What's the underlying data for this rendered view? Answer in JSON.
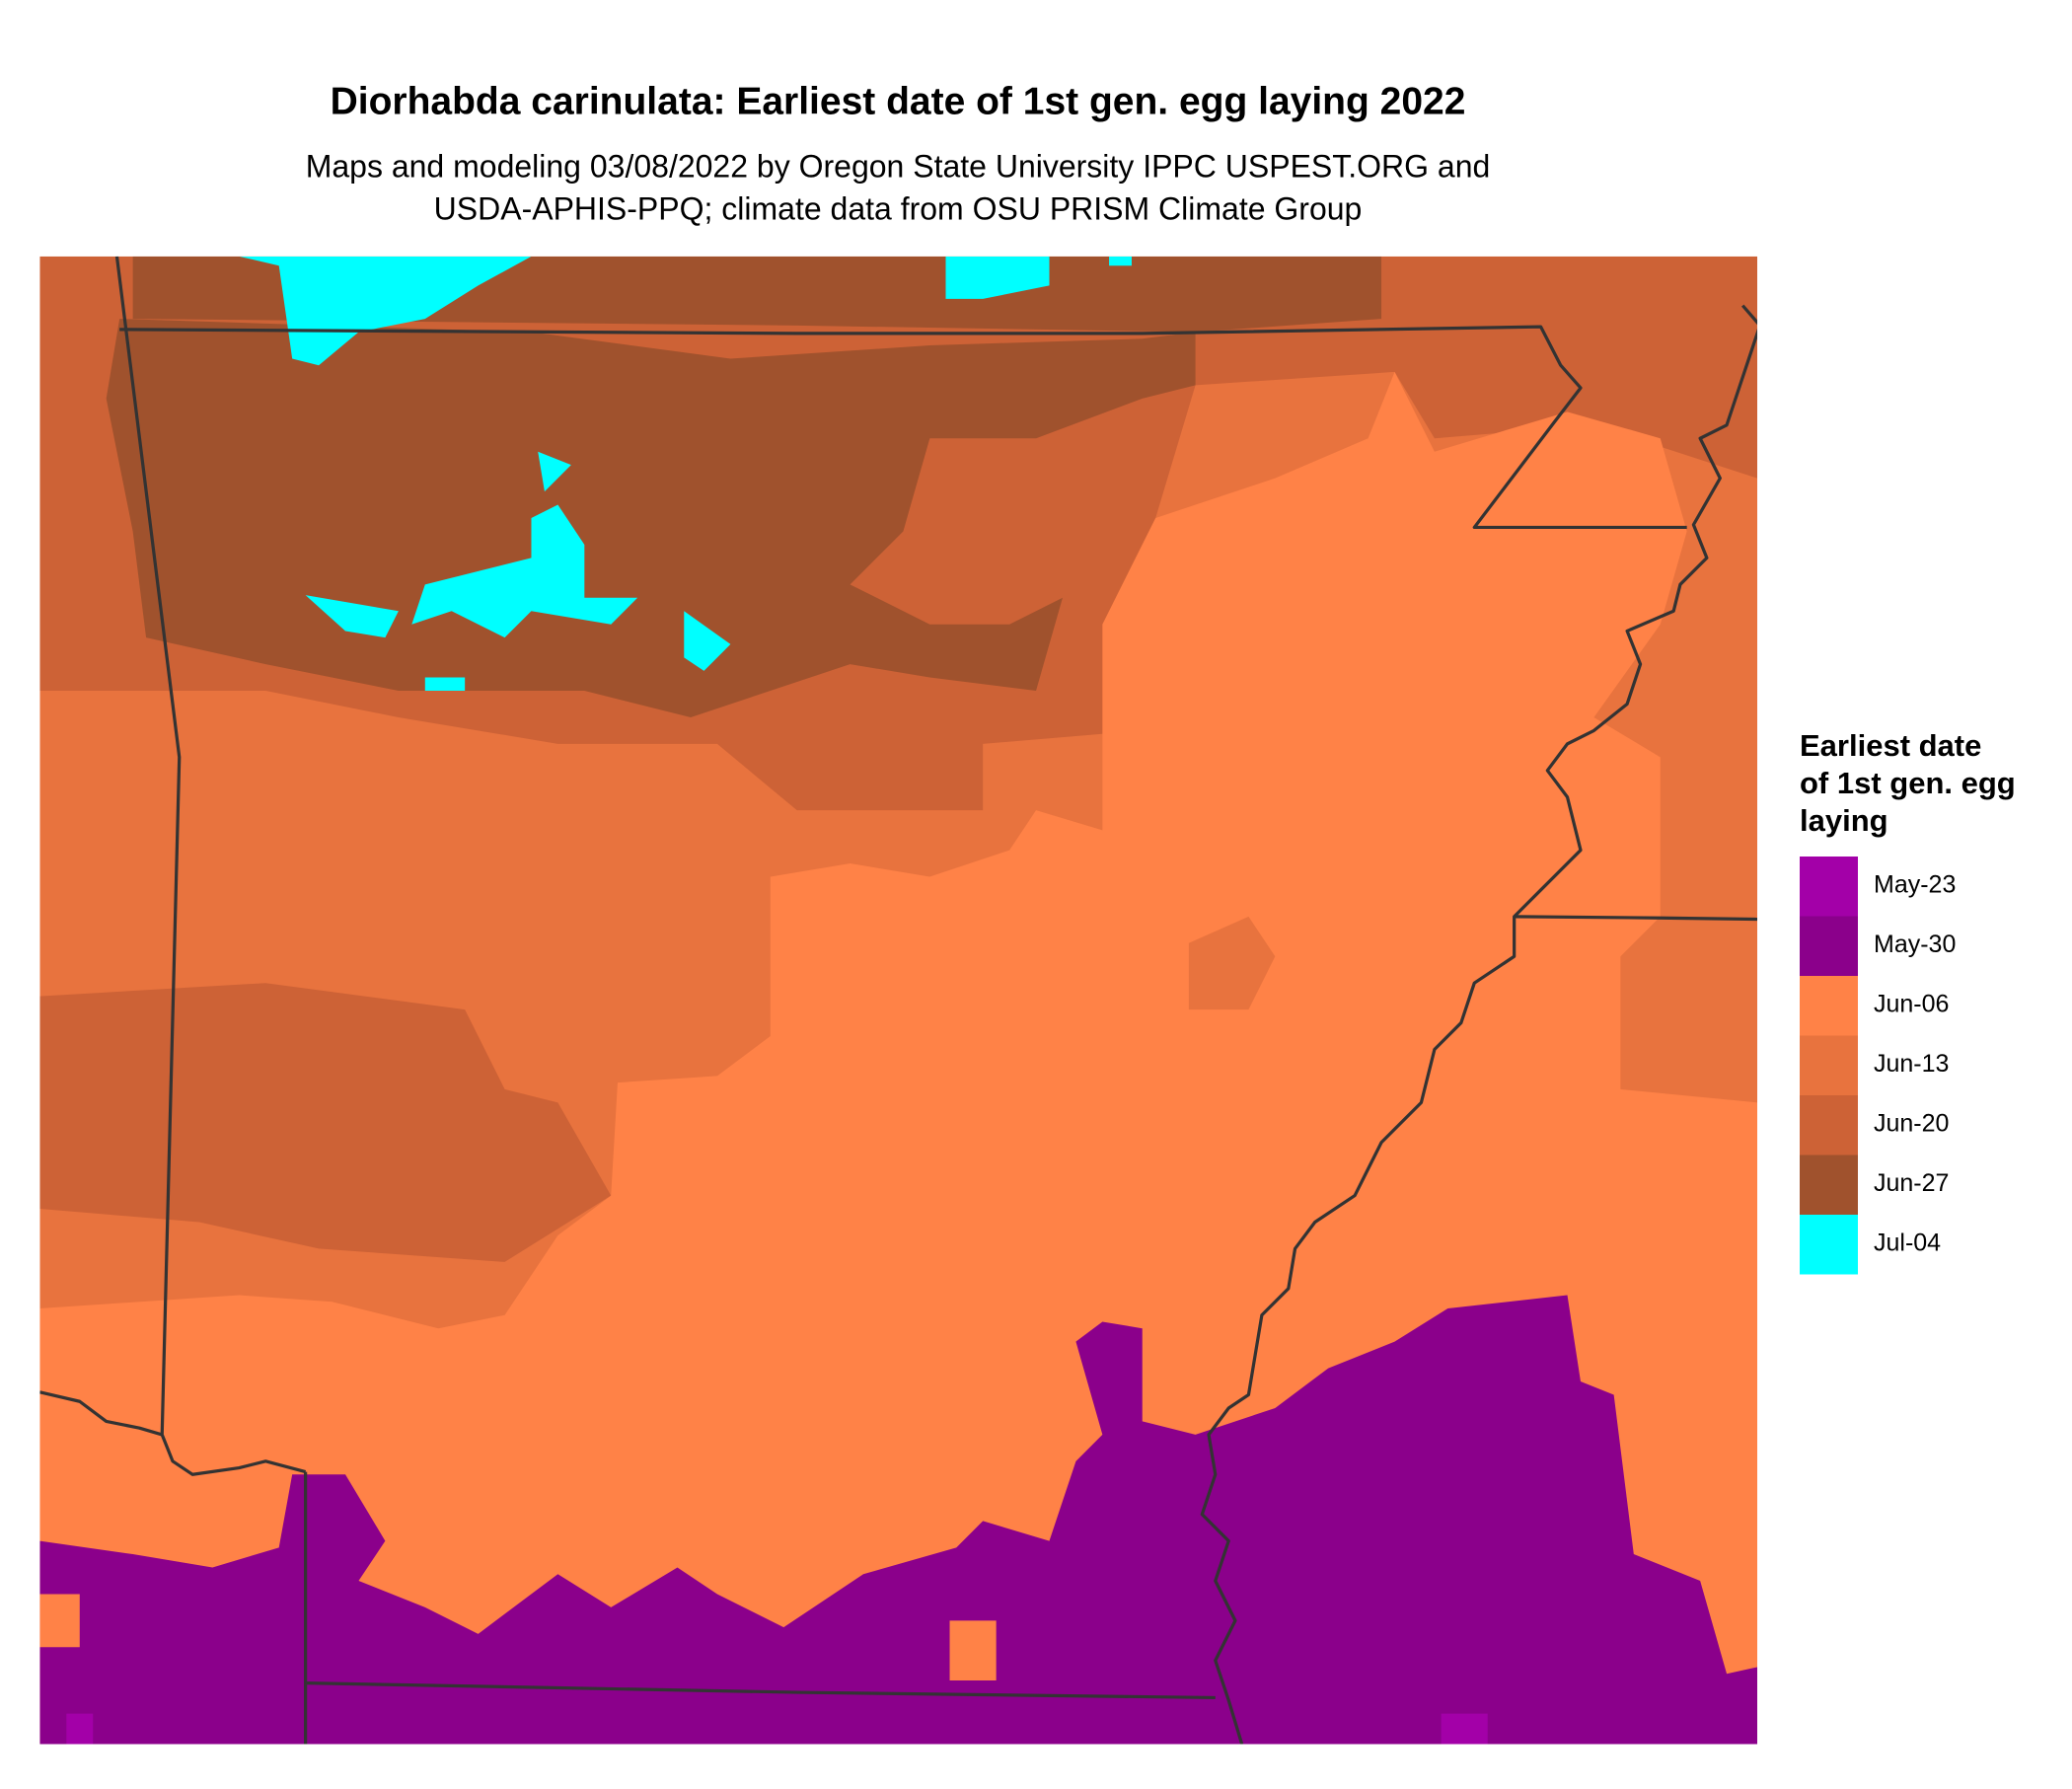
{
  "header": {
    "title": "Diorhabda carinulata: Earliest date of 1st gen. egg laying 2022",
    "subtitle_lines": [
      "Maps and modeling 03/08/2022 by Oregon State University IPPC USPEST.ORG and",
      "USDA-APHIS-PPQ; climate data from OSU PRISM Climate Group"
    ]
  },
  "legend": {
    "title_lines": [
      "Earliest date",
      "of 1st gen. egg",
      "laying"
    ],
    "items": [
      {
        "label": "May-23",
        "color": "#a300a8"
      },
      {
        "label": "May-30",
        "color": "#8b008b"
      },
      {
        "label": "Jun-06",
        "color": "#ff8247"
      },
      {
        "label": "Jun-13",
        "color": "#e8733e"
      },
      {
        "label": "Jun-20",
        "color": "#cd6236"
      },
      {
        "label": "Jun-27",
        "color": "#a0522d"
      },
      {
        "label": "Jul-04",
        "color": "#00ffff"
      }
    ]
  }
}
